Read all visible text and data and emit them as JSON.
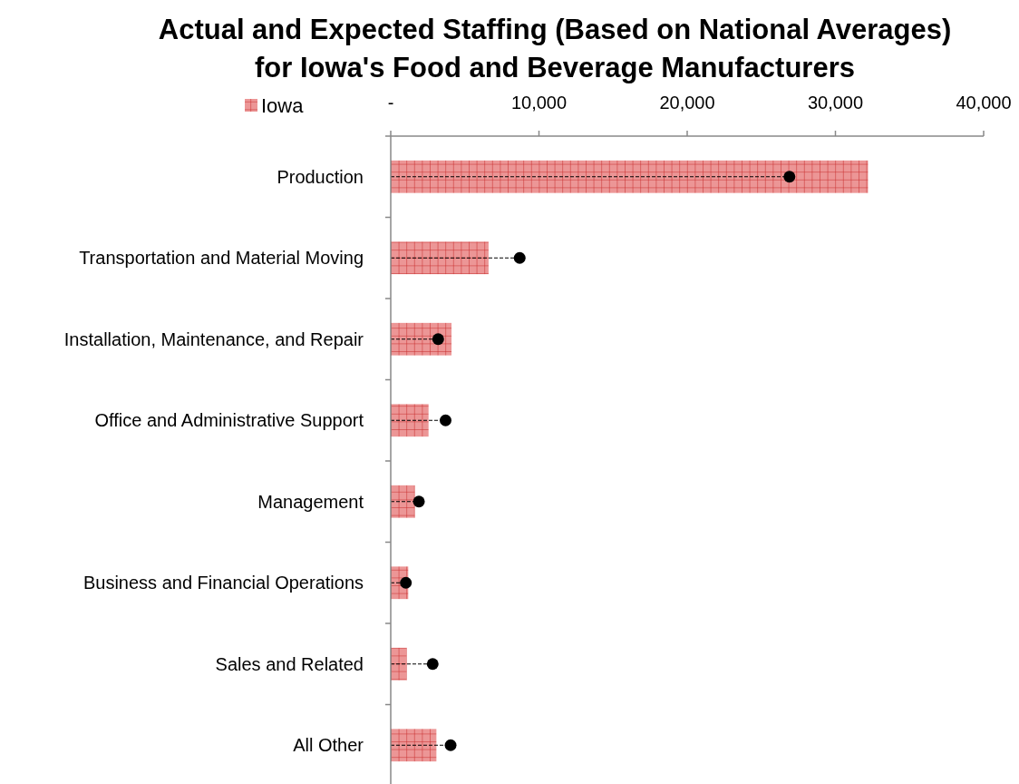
{
  "chart_data": {
    "type": "bar",
    "orientation": "horizontal",
    "title": "Actual and Expected Staffing (Based on National Averages)\nfor Iowa's Food and Beverage Manufacturers",
    "categories": [
      "Production",
      "Transportation and Material Moving",
      "Installation, Maintenance, and Repair",
      "Office and Administrative Support",
      "Management",
      "Business and Financial Operations",
      "Sales and Related",
      "All Other"
    ],
    "series": [
      {
        "name": "Iowa",
        "type": "bar",
        "color": "#e57373",
        "values": [
          32200,
          6600,
          4100,
          2550,
          1630,
          1180,
          1080,
          3080
        ]
      },
      {
        "type": "lollipop",
        "color": "#000000",
        "marker": "circle",
        "line_style": "dashed",
        "values": [
          26900,
          8700,
          3200,
          3700,
          1900,
          1020,
          2830,
          4040
        ]
      }
    ],
    "xlim": [
      0,
      40000
    ],
    "xticks": [
      {
        "value": 0,
        "label": "-"
      },
      {
        "value": 10000,
        "label": "10,000"
      },
      {
        "value": 20000,
        "label": "20,000"
      },
      {
        "value": 30000,
        "label": "30,000"
      },
      {
        "value": 40000,
        "label": "40,000"
      }
    ],
    "legend": "top left",
    "grid": false
  }
}
